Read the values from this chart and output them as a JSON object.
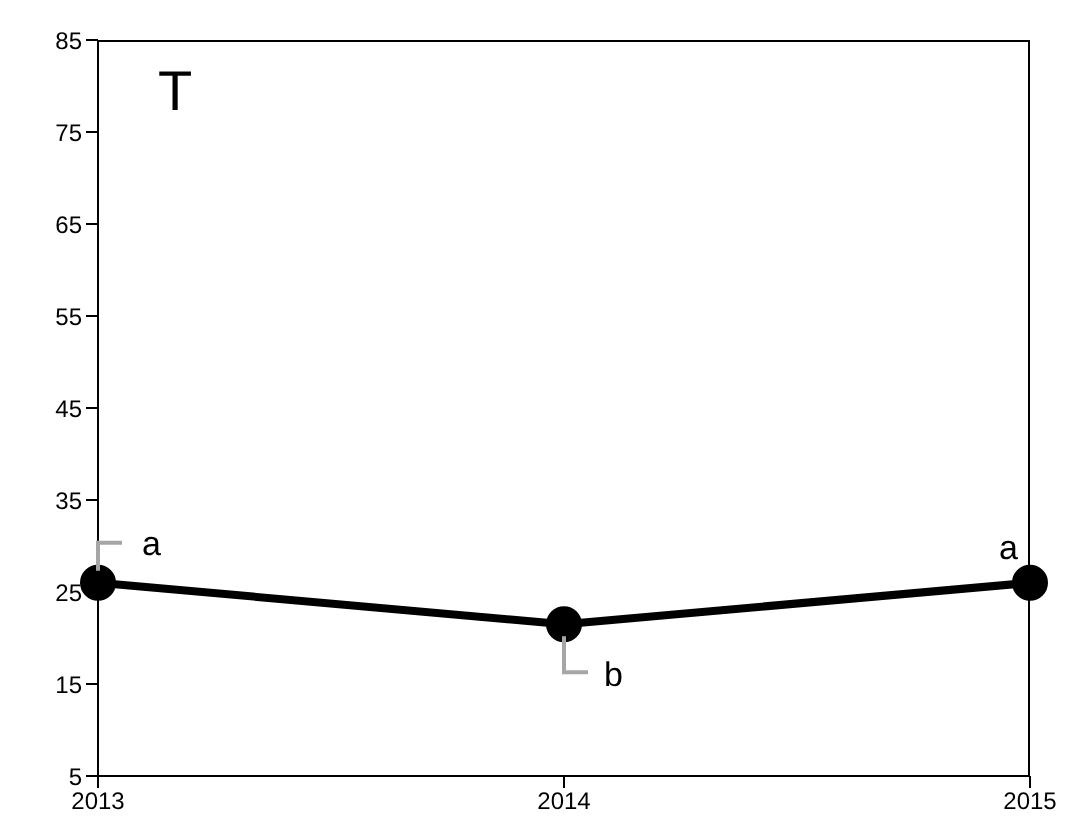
{
  "chart_data": {
    "type": "line",
    "categories": [
      "2013",
      "2014",
      "2015"
    ],
    "values": [
      26,
      21.5,
      26
    ],
    "color": "#000000",
    "marker": "circle",
    "ylim": [
      5,
      85
    ],
    "yticks": [
      5,
      15,
      25,
      35,
      45,
      55,
      65,
      75,
      85
    ],
    "grid": false,
    "legend": false,
    "annotations": [
      "T",
      {
        "text": "a",
        "x": "2013",
        "y": 26
      },
      {
        "text": "b",
        "x": "2014",
        "y": 21.5
      },
      {
        "text": "a",
        "x": "2015",
        "y": 26
      }
    ]
  }
}
